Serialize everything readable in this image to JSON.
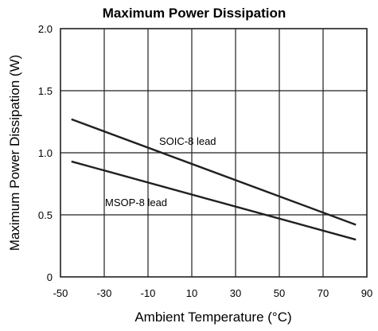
{
  "chart_data": {
    "type": "line",
    "title": "Maximum Power Dissipation",
    "xlabel": "Ambient Temperature (°C)",
    "ylabel": "Maximum Power Dissipation (W)",
    "xlim": [
      -50,
      90
    ],
    "ylim": [
      0,
      2.0
    ],
    "x_ticks": [
      -50,
      -30,
      -10,
      10,
      30,
      50,
      70,
      90
    ],
    "x_tick_labels": [
      "-50",
      "-30",
      "-10",
      "10",
      "30",
      "50",
      "70",
      "90"
    ],
    "y_ticks": [
      0,
      0.5,
      1.0,
      1.5,
      2.0
    ],
    "y_tick_labels": [
      "0",
      "0.5",
      "1.0",
      "1.5",
      "2.0"
    ],
    "grid": true,
    "line_color": "#231f20",
    "series": [
      {
        "name": "SOIC-8 lead",
        "x": [
          -45,
          85
        ],
        "y": [
          1.27,
          0.42
        ]
      },
      {
        "name": "MSOP-8 lead",
        "x": [
          -45,
          85
        ],
        "y": [
          0.93,
          0.3
        ]
      }
    ]
  }
}
